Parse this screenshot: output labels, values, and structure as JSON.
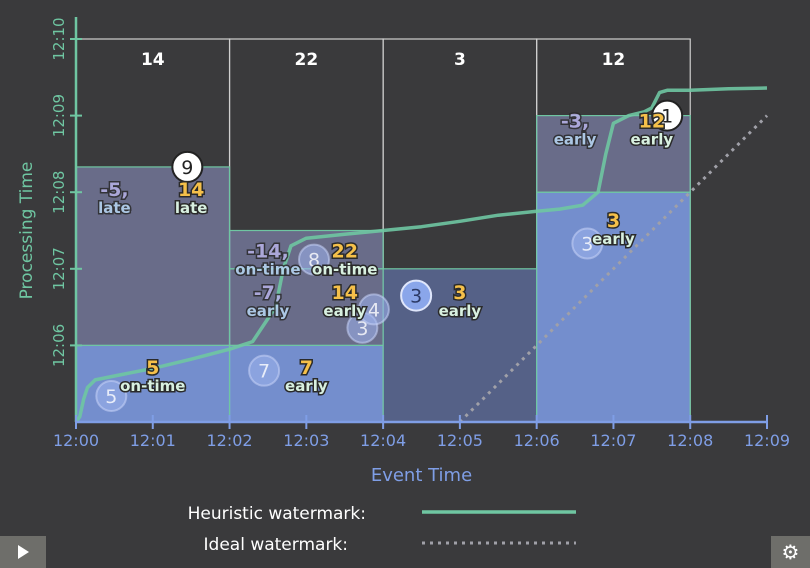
{
  "chart_data": {
    "type": "line",
    "xlabel": "Event Time",
    "ylabel": "Processing Time",
    "x_ticks": [
      "12:00",
      "12:01",
      "12:02",
      "12:03",
      "12:04",
      "12:05",
      "12:06",
      "12:07",
      "12:08",
      "12:09"
    ],
    "y_ticks": [
      "12:06",
      "12:07",
      "12:08",
      "12:09",
      "12:10"
    ],
    "x_range_minutes": [
      0,
      9
    ],
    "y_range_minutes": [
      5.0,
      10.0
    ],
    "window_totals": [
      {
        "window": "12:00-12:02",
        "value": "14"
      },
      {
        "window": "12:02-12:04",
        "value": "22"
      },
      {
        "window": "12:04-12:06",
        "value": "3"
      },
      {
        "window": "12:06-12:08",
        "value": "12"
      }
    ],
    "panes": [
      {
        "window": 0,
        "y0": 5.0,
        "y1": 6.0,
        "value": "5",
        "tag": "on-time",
        "kind": "current"
      },
      {
        "window": 0,
        "y0": 6.0,
        "y1": 8.33,
        "value": "14",
        "tag": "late",
        "prev": "-5,",
        "prev_tag": "late",
        "kind": "past"
      },
      {
        "window": 1,
        "y0": 5.0,
        "y1": 6.0,
        "value": "7",
        "tag": "early",
        "kind": "current"
      },
      {
        "window": 1,
        "y0": 6.0,
        "y1": 7.0,
        "value": "14",
        "tag": "early",
        "prev": "-7,",
        "prev_tag": "early",
        "kind": "past"
      },
      {
        "window": 1,
        "y0": 7.0,
        "y1": 7.5,
        "value": "22",
        "tag": "on-time",
        "prev": "-14,",
        "prev_tag": "on-time",
        "kind": "past"
      },
      {
        "window": 2,
        "y0": 5.0,
        "y1": 7.0,
        "value": "3",
        "tag": "early",
        "kind": "dark"
      },
      {
        "window": 3,
        "y0": 5.0,
        "y1": 8.0,
        "value": "3",
        "tag": "early",
        "kind": "current"
      },
      {
        "window": 3,
        "y0": 8.0,
        "y1": 9.0,
        "value": "12",
        "tag": "early",
        "prev": "-3,",
        "prev_tag": "early",
        "kind": "past"
      }
    ],
    "points": [
      {
        "x": 0.46,
        "y": 5.34,
        "label": "5",
        "style": "faded"
      },
      {
        "x": 2.45,
        "y": 5.67,
        "label": "7",
        "style": "faded"
      },
      {
        "x": 3.1,
        "y": 7.12,
        "label": "8",
        "style": "faded"
      },
      {
        "x": 3.73,
        "y": 6.23,
        "label": "3",
        "style": "faded"
      },
      {
        "x": 3.88,
        "y": 6.47,
        "label": "4",
        "style": "faded"
      },
      {
        "x": 4.43,
        "y": 6.65,
        "label": "3",
        "style": "blue"
      },
      {
        "x": 6.66,
        "y": 7.33,
        "label": "3",
        "style": "faded"
      },
      {
        "x": 1.45,
        "y": 8.33,
        "label": "9",
        "style": "white"
      },
      {
        "x": 7.7,
        "y": 9.0,
        "label": "1",
        "style": "white"
      }
    ],
    "series": [
      {
        "name": "Heuristic watermark",
        "style": "solid",
        "color": "#6fc6a2",
        "x": [
          0,
          0.05,
          0.1,
          0.15,
          0.25,
          0.5,
          1,
          1.5,
          2,
          2.3,
          2.6,
          2.7,
          2.8,
          3,
          3.5,
          4,
          4.5,
          5,
          5.5,
          6,
          6.3,
          6.6,
          6.8,
          6.9,
          7,
          7.2,
          7.4,
          7.5,
          7.6,
          7.7,
          8,
          8.5,
          9
        ],
        "y": [
          5.0,
          5.07,
          5.3,
          5.45,
          5.55,
          5.6,
          5.7,
          5.82,
          5.95,
          6.05,
          6.5,
          7.0,
          7.3,
          7.4,
          7.45,
          7.5,
          7.55,
          7.62,
          7.7,
          7.75,
          7.78,
          7.83,
          8.0,
          8.5,
          8.9,
          9.0,
          9.05,
          9.1,
          9.3,
          9.33,
          9.33,
          9.35,
          9.36
        ]
      },
      {
        "name": "Ideal watermark",
        "style": "dotted",
        "color": "#a0a0a8",
        "x": [
          5,
          9
        ],
        "y": [
          5.0,
          9.0
        ]
      }
    ],
    "legend": [
      {
        "label": "Heuristic watermark:",
        "style": "solid"
      },
      {
        "label": "Ideal watermark:",
        "style": "dotted"
      }
    ],
    "colors": {
      "accent_green": "#6fc6a2",
      "accent_blue": "#7f9ee6",
      "label_yellow": "#f5c04a"
    }
  },
  "controls": {
    "play_icon": "play-icon",
    "settings_icon": "gear-icon",
    "settings_glyph": "⚙"
  }
}
